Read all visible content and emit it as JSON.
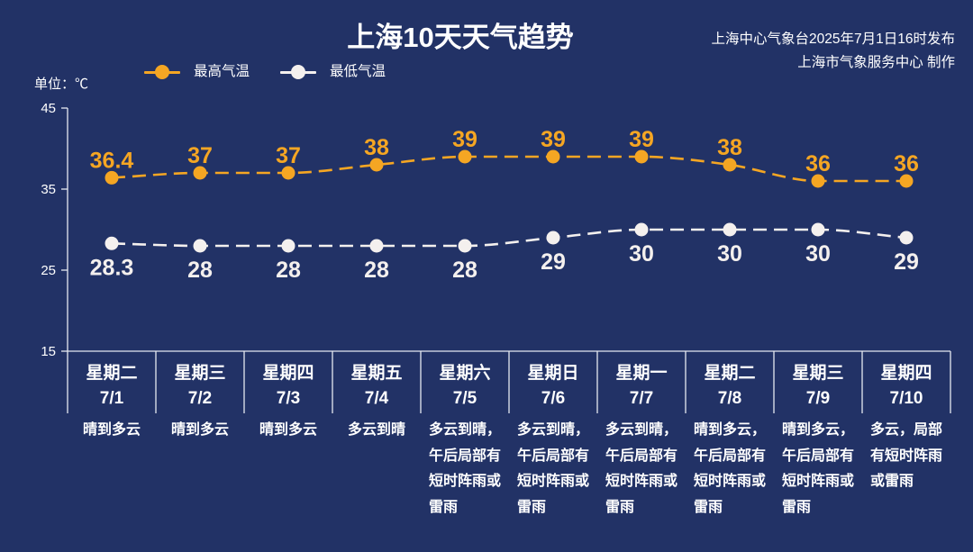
{
  "issuer": {
    "line1": "上海中心气象台2025年7月1日16时发布",
    "line2": "上海市气象服务中心 制作"
  },
  "colors": {
    "background": "#223266",
    "text": "#ffffff",
    "axis": "#e6e9f1"
  },
  "chart_data": {
    "type": "line",
    "title": "上海10天天气趋势",
    "ylabel": "单位：℃",
    "ylim": [
      15,
      45
    ],
    "yticks": [
      45,
      35,
      25,
      15
    ],
    "categories": [
      "7/1",
      "7/2",
      "7/3",
      "7/4",
      "7/5",
      "7/6",
      "7/7",
      "7/8",
      "7/9",
      "7/10"
    ],
    "series": [
      {
        "name": "最高气温",
        "color": "#f5a623",
        "values": [
          36.4,
          37,
          37,
          38,
          39,
          39,
          39,
          38,
          36,
          36
        ]
      },
      {
        "name": "最低气温",
        "color": "#f4f0ee",
        "values": [
          28.3,
          28,
          28,
          28,
          28,
          29,
          30,
          30,
          30,
          29
        ]
      }
    ],
    "line_style": "dashed",
    "smooth": true,
    "grid": false,
    "legend_position": "top-left"
  },
  "days": [
    {
      "weekday": "星期二",
      "weather": [
        "晴到多云"
      ]
    },
    {
      "weekday": "星期三",
      "weather": [
        "晴到多云"
      ]
    },
    {
      "weekday": "星期四",
      "weather": [
        "晴到多云"
      ]
    },
    {
      "weekday": "星期五",
      "weather": [
        "多云到晴"
      ]
    },
    {
      "weekday": "星期六",
      "weather": [
        "多云到晴，",
        "午后局部有",
        "短时阵雨或",
        "雷雨"
      ]
    },
    {
      "weekday": "星期日",
      "weather": [
        "多云到晴，",
        "午后局部有",
        "短时阵雨或",
        "雷雨"
      ]
    },
    {
      "weekday": "星期一",
      "weather": [
        "多云到晴，",
        "午后局部有",
        "短时阵雨或",
        "雷雨"
      ]
    },
    {
      "weekday": "星期二",
      "weather": [
        "晴到多云，",
        "午后局部有",
        "短时阵雨或",
        "雷雨"
      ]
    },
    {
      "weekday": "星期三",
      "weather": [
        "晴到多云，",
        "午后局部有",
        "短时阵雨或",
        "雷雨"
      ]
    },
    {
      "weekday": "星期四",
      "weather": [
        "多云，局部",
        "有短时阵雨",
        "或雷雨"
      ]
    }
  ]
}
